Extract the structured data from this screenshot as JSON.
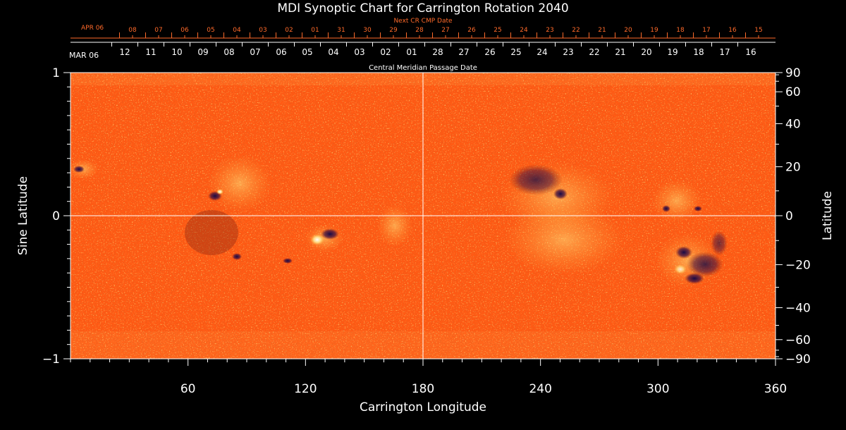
{
  "chart_data": {
    "type": "heatmap",
    "title": "MDI Synoptic Chart for Carrington Rotation 2040",
    "xlabel": "Carrington Longitude",
    "ylabel_left": "Sine Latitude",
    "ylabel_right": "Latitude",
    "xlim": [
      0,
      360
    ],
    "ylim_sine": [
      -1,
      1
    ],
    "x_ticks": [
      60,
      120,
      180,
      240,
      300,
      360
    ],
    "y_ticks_sine": [
      "1",
      "0",
      "−1"
    ],
    "y_ticks_latitude": [
      90,
      60,
      40,
      20,
      0,
      -20,
      -40,
      -60,
      -90
    ],
    "y_tick_labels_latitude": [
      "90",
      "60",
      "40",
      "20",
      "0",
      "−20",
      "−40",
      "−60",
      "−90"
    ],
    "crosshair": {
      "longitude": 180,
      "latitude": 0
    },
    "top_axis_title": "Central Meridian Passage Date",
    "top_axis_start_label": "MAR 06",
    "top_axis_dates": [
      "12",
      "11",
      "10",
      "09",
      "08",
      "07",
      "06",
      "05",
      "04",
      "03",
      "02",
      "01",
      "28",
      "27",
      "26",
      "25",
      "24",
      "23",
      "22",
      "21",
      "20",
      "19",
      "18",
      "17",
      "16"
    ],
    "next_cr_title": "Next CR CMP Date",
    "next_cr_start_label": "APR 06",
    "next_cr_dates": [
      "08",
      "07",
      "06",
      "05",
      "04",
      "03",
      "02",
      "01",
      "31",
      "30",
      "29",
      "28",
      "27",
      "26",
      "25",
      "24",
      "23",
      "22",
      "21",
      "20",
      "19",
      "18",
      "17",
      "16",
      "15"
    ],
    "colormap": [
      "#1a0a4a",
      "#ff5010",
      "#ffe060"
    ],
    "background_color": "#ff5a14",
    "grid": false
  }
}
